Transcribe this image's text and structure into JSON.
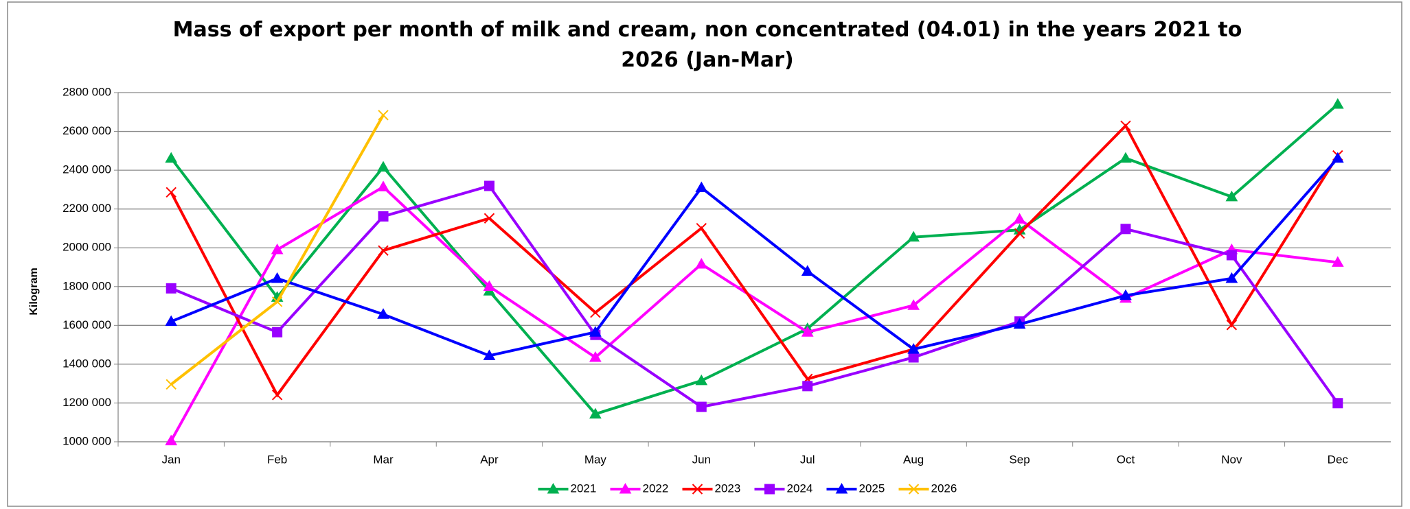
{
  "chart_data": {
    "type": "line",
    "title": "Mass of export per month of milk and cream, non concentrated (04.01) in the years 2021 to 2026 (Jan-Mar)",
    "y_label": "Kilogram",
    "categories": [
      "Jan",
      "Feb",
      "Mar",
      "Apr",
      "May",
      "Jun",
      "Jul",
      "Aug",
      "Sep",
      "Oct",
      "Nov",
      "Dec"
    ],
    "ylim": [
      1000000,
      2800000
    ],
    "yticks": [
      {
        "value": 1000000,
        "label": "1000 000"
      },
      {
        "value": 1200000,
        "label": "1200 000"
      },
      {
        "value": 1400000,
        "label": "1400 000"
      },
      {
        "value": 1600000,
        "label": "1600 000"
      },
      {
        "value": 1800000,
        "label": "1800 000"
      },
      {
        "value": 2000000,
        "label": "2000 000"
      },
      {
        "value": 2200000,
        "label": "2200 000"
      },
      {
        "value": 2400000,
        "label": "2400 000"
      },
      {
        "value": 2600000,
        "label": "2600 000"
      },
      {
        "value": 2800000,
        "label": "2800 000"
      }
    ],
    "grid": true,
    "legend": "bottom",
    "series": [
      {
        "name": "2021",
        "color": "#00b050",
        "marker": "triangle",
        "values": [
          2462000,
          1745000,
          2416000,
          1777000,
          1143000,
          1315000,
          1583000,
          2055000,
          2092000,
          2462000,
          2263000,
          2740000
        ]
      },
      {
        "name": "2022",
        "color": "#ff00ff",
        "marker": "triangle",
        "values": [
          1005000,
          1990000,
          2314000,
          1801000,
          1435000,
          1916000,
          1565000,
          1703000,
          2148000,
          1740000,
          1990000,
          1925000
        ]
      },
      {
        "name": "2023",
        "color": "#ff0000",
        "marker": "x",
        "values": [
          2286000,
          1241000,
          1986000,
          2152000,
          1666000,
          2101000,
          1324000,
          1477000,
          2074000,
          2629000,
          1602000,
          2476000
        ]
      },
      {
        "name": "2024",
        "color": "#9900ff",
        "marker": "square",
        "values": [
          1791000,
          1565000,
          2162000,
          2319000,
          1551000,
          1180000,
          1287000,
          1435000,
          1620000,
          2097000,
          1962000,
          1199000
        ]
      },
      {
        "name": "2025",
        "color": "#0000ff",
        "marker": "triangle",
        "values": [
          1620000,
          1842000,
          1657000,
          1444000,
          1565000,
          2310000,
          1879000,
          1477000,
          1606000,
          1754000,
          1842000,
          2462000
        ]
      },
      {
        "name": "2026",
        "color": "#ffc000",
        "marker": "x",
        "values": [
          1296000,
          1722000,
          2684000,
          null,
          null,
          null,
          null,
          null,
          null,
          null,
          null,
          null
        ]
      }
    ]
  }
}
